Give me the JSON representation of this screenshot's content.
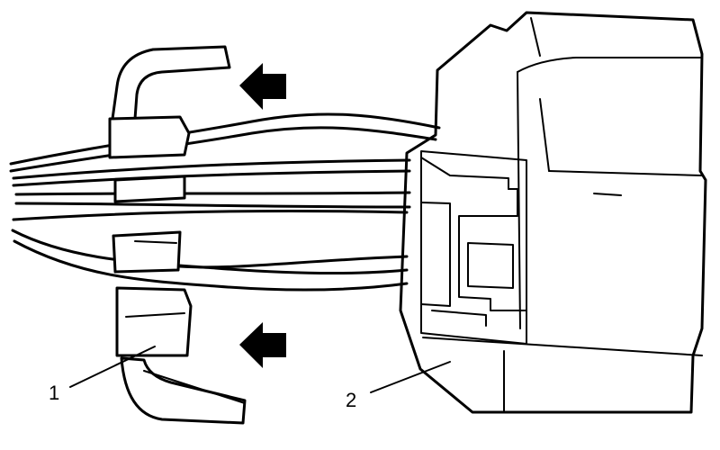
{
  "callouts": [
    {
      "label": "1",
      "part": "connector-lock"
    },
    {
      "label": "2",
      "part": "connector-housing"
    }
  ],
  "arrows": {
    "count": 2,
    "direction": "left",
    "color": "#000000"
  },
  "colors": {
    "line": "#000000",
    "background": "#ffffff"
  }
}
